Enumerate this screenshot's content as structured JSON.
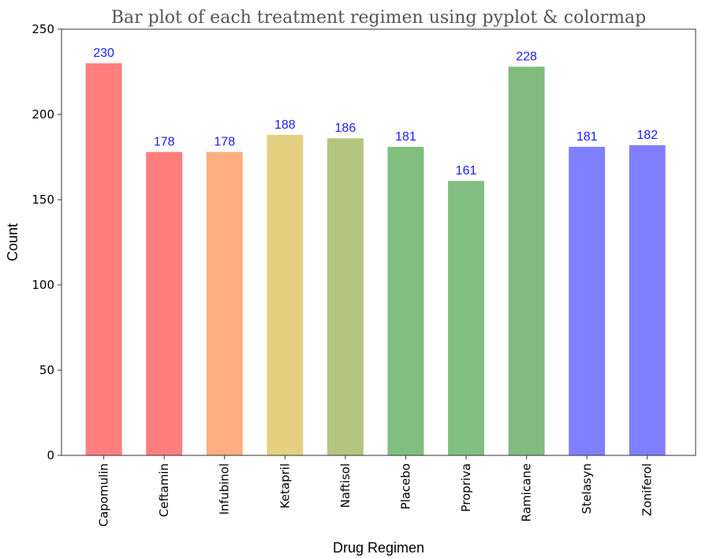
{
  "chart_data": {
    "type": "bar",
    "title": "Bar plot of each treatment regimen using pyplot & colormap",
    "xlabel": "Drug Regimen",
    "ylabel": "Count",
    "ylim": [
      0,
      250
    ],
    "yticks": [
      0,
      50,
      100,
      150,
      200,
      250
    ],
    "categories": [
      "Capomulin",
      "Ceftamin",
      "Infubinol",
      "Ketapril",
      "Naftisol",
      "Placebo",
      "Propriva",
      "Ramicane",
      "Stelasyn",
      "Zoniferol"
    ],
    "values": [
      230,
      178,
      178,
      188,
      186,
      181,
      161,
      228,
      181,
      182
    ],
    "bar_colors": [
      "#ff7f7f",
      "#ff7f7f",
      "#ffae7f",
      "#e5cf80",
      "#b3c580",
      "#80bf80",
      "#80bf80",
      "#80bb80",
      "#807fff",
      "#807fff"
    ],
    "data_label_color": "#1a1aff",
    "grid": false,
    "legend": "none"
  }
}
